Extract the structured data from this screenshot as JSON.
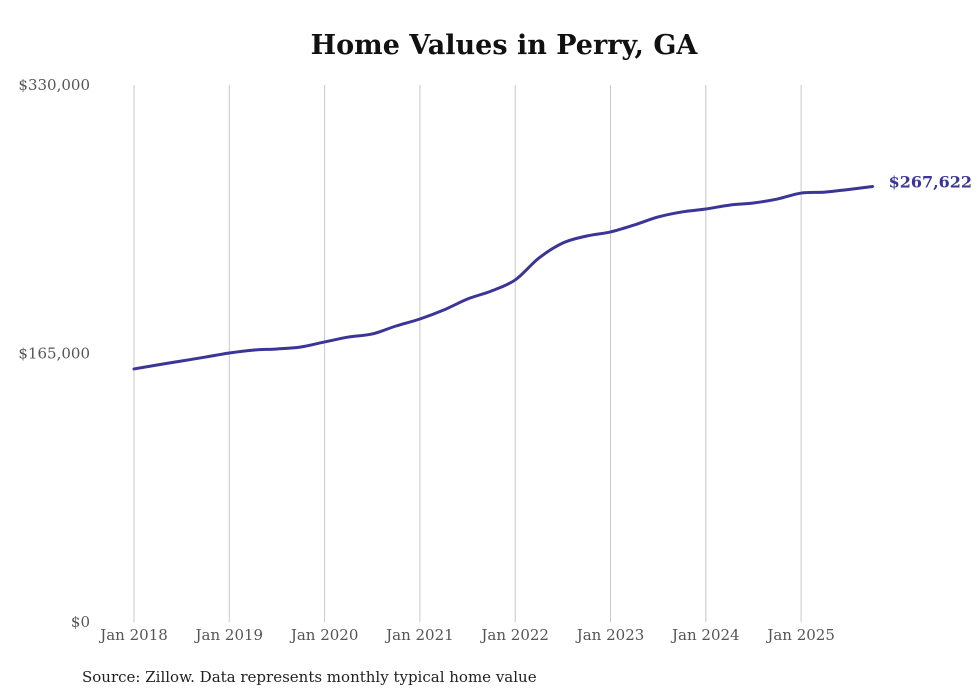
{
  "chart_data": {
    "type": "line",
    "title": "Home Values in Perry, GA",
    "xlabel": "",
    "ylabel": "",
    "ylim": [
      0,
      330000
    ],
    "y_ticks": [
      "$330,000",
      "$165,000",
      "$0"
    ],
    "y_tick_values": [
      330000,
      165000,
      0
    ],
    "x_ticks": [
      "Jan 2018",
      "Jan 2019",
      "Jan 2020",
      "Jan 2021",
      "Jan 2022",
      "Jan 2023",
      "Jan 2024",
      "Jan 2025"
    ],
    "x_tick_values": [
      2018,
      2019,
      2020,
      2021,
      2022,
      2023,
      2024,
      2025
    ],
    "grid": "vertical",
    "series": [
      {
        "name": "Typical home value",
        "color": "#3a3596",
        "x": [
          2018,
          2018.25,
          2018.5,
          2018.75,
          2019,
          2019.25,
          2019.5,
          2019.75,
          2020,
          2020.25,
          2020.5,
          2020.75,
          2021,
          2021.25,
          2021.5,
          2021.75,
          2022,
          2022.25,
          2022.5,
          2022.75,
          2023,
          2023.25,
          2023.5,
          2023.75,
          2024,
          2024.25,
          2024.5,
          2024.75,
          2025,
          2025.25,
          2025.5,
          2025.75
        ],
        "values": [
          155500,
          158000,
          160400,
          162800,
          165300,
          167100,
          167800,
          169000,
          172100,
          175100,
          177000,
          181900,
          186200,
          191700,
          198500,
          203400,
          210200,
          223700,
          232900,
          237200,
          239700,
          244000,
          248900,
          252000,
          253800,
          256200,
          257500,
          259900,
          263600,
          264200,
          265800,
          267622
        ]
      }
    ],
    "end_label": "$267,622"
  },
  "source": "Source: Zillow. Data represents monthly typical home value"
}
